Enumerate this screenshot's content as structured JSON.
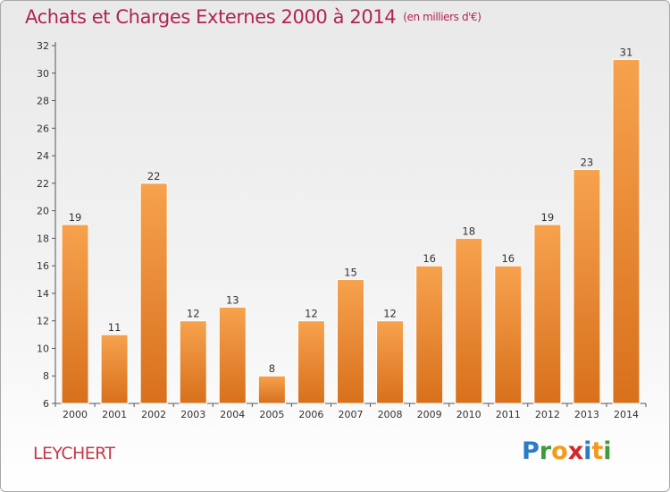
{
  "title": "Achats et Charges Externes 2000 à 2014",
  "subtitle": "(en milliers d'€)",
  "commune": "LEYCHERT",
  "logo": {
    "letters": [
      "P",
      "r",
      "o",
      "x",
      "i",
      "t",
      "i"
    ],
    "colors": [
      "#2a7bc8",
      "#3f9a3c",
      "#f39a1a",
      "#d6252c",
      "#2a7bc8",
      "#f39a1a",
      "#3f9a3c"
    ]
  },
  "chart_data": {
    "type": "bar",
    "categories": [
      "2000",
      "2001",
      "2002",
      "2003",
      "2004",
      "2005",
      "2006",
      "2007",
      "2008",
      "2009",
      "2010",
      "2011",
      "2012",
      "2013",
      "2014"
    ],
    "values": [
      19,
      11,
      22,
      12,
      13,
      8,
      12,
      15,
      12,
      16,
      18,
      16,
      19,
      23,
      31
    ],
    "ylim": [
      6,
      32
    ],
    "yticks": [
      6,
      8,
      10,
      12,
      14,
      16,
      18,
      20,
      22,
      24,
      26,
      28,
      30,
      32
    ],
    "grid": false,
    "bar_color_top": "#f7a24e",
    "bar_color_bottom": "#d8701c"
  }
}
